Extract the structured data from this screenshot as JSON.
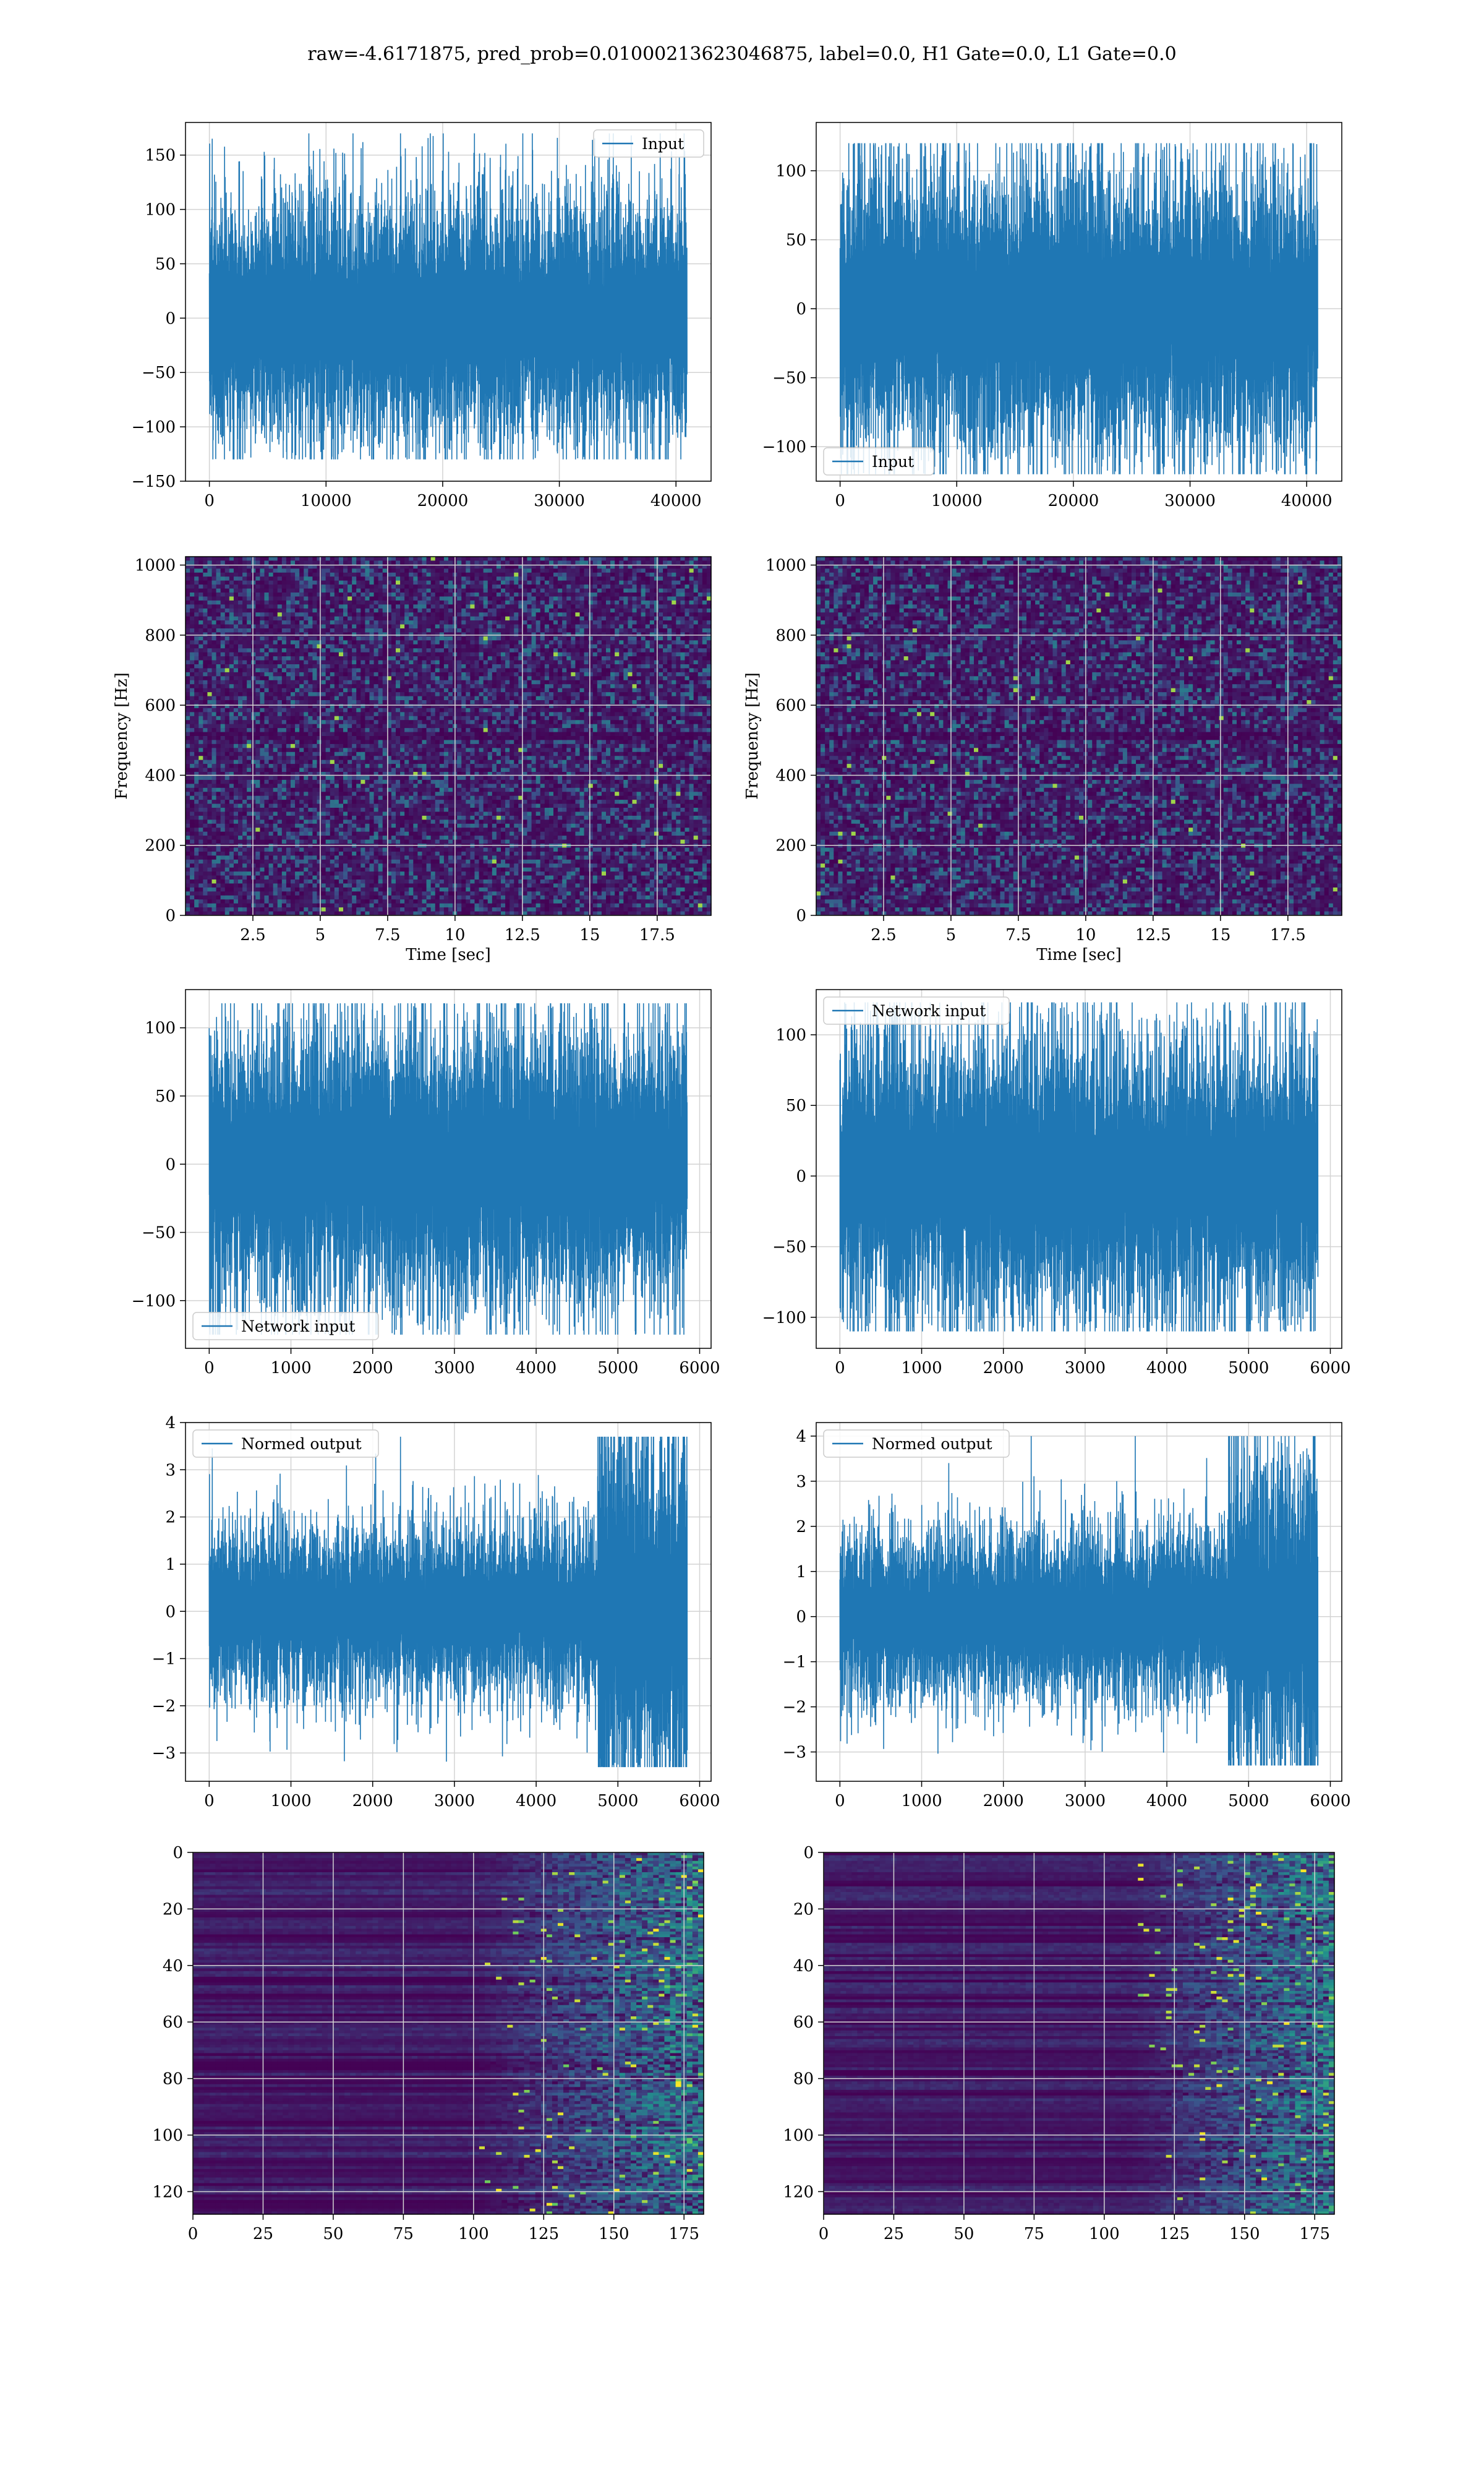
{
  "figure": {
    "title": "raw=-4.6171875, pred_prob=0.01000213623046875, label=0.0, H1 Gate=0.0, L1 Gate=0.0"
  },
  "colors": {
    "line": "#1f77b4",
    "grid": "#d3d3d3",
    "viridis_low": "#440154",
    "viridis_mid": "#21918c",
    "viridis_high": "#fde725"
  },
  "chart_data": [
    {
      "id": "input-left",
      "type": "line",
      "series": [
        {
          "name": "Input",
          "n": 40960,
          "amplitude_sd": 30,
          "peak": 170,
          "trough": -130
        }
      ],
      "xlim": [
        -2048,
        43008
      ],
      "ylim": [
        -150,
        180
      ],
      "xticks": [
        0,
        10000,
        20000,
        30000,
        40000
      ],
      "yticks": [
        -150,
        -100,
        -50,
        0,
        50,
        100,
        150
      ],
      "legend": "upper right",
      "grid": true,
      "xlabel": "",
      "ylabel": ""
    },
    {
      "id": "input-right",
      "type": "line",
      "series": [
        {
          "name": "Input",
          "n": 40960,
          "amplitude_sd": 28,
          "peak": 120,
          "trough": -120
        }
      ],
      "xlim": [
        -2048,
        43008
      ],
      "ylim": [
        -125,
        135
      ],
      "xticks": [
        0,
        10000,
        20000,
        30000,
        40000
      ],
      "yticks": [
        -100,
        -50,
        0,
        50,
        100
      ],
      "legend": "lower left",
      "grid": true,
      "xlabel": "",
      "ylabel": ""
    },
    {
      "id": "spec-left",
      "type": "heatmap",
      "xlabel": "Time [sec]",
      "ylabel": "Frequency [Hz]",
      "xlim": [
        0,
        19.5
      ],
      "ylim": [
        0,
        1024
      ],
      "xticks": [
        2.5,
        5.0,
        7.5,
        10.0,
        12.5,
        15.0,
        17.5
      ],
      "yticks": [
        0,
        200,
        400,
        600,
        800,
        1000
      ],
      "grid": true,
      "colormap": "viridis"
    },
    {
      "id": "spec-right",
      "type": "heatmap",
      "xlabel": "Time [sec]",
      "ylabel": "Frequency [Hz]",
      "xlim": [
        0,
        19.5
      ],
      "ylim": [
        0,
        1024
      ],
      "xticks": [
        2.5,
        5.0,
        7.5,
        10.0,
        12.5,
        15.0,
        17.5
      ],
      "yticks": [
        0,
        200,
        400,
        600,
        800,
        1000
      ],
      "grid": true,
      "colormap": "viridis"
    },
    {
      "id": "network-left",
      "type": "line",
      "series": [
        {
          "name": "Network input",
          "n": 5850,
          "amplitude_sd": 28,
          "peak": 118,
          "trough": -125
        }
      ],
      "xlim": [
        -290,
        6140
      ],
      "ylim": [
        -135,
        128
      ],
      "xticks": [
        0,
        1000,
        2000,
        3000,
        4000,
        5000,
        6000
      ],
      "yticks": [
        -100,
        -50,
        0,
        50,
        100
      ],
      "legend": "lower left",
      "grid": true,
      "xlabel": "",
      "ylabel": ""
    },
    {
      "id": "network-right",
      "type": "line",
      "series": [
        {
          "name": "Network input",
          "n": 5850,
          "amplitude_sd": 27,
          "peak": 123,
          "trough": -110
        }
      ],
      "xlim": [
        -290,
        6140
      ],
      "ylim": [
        -122,
        132
      ],
      "xticks": [
        0,
        1000,
        2000,
        3000,
        4000,
        5000,
        6000
      ],
      "yticks": [
        -100,
        -50,
        0,
        50,
        100
      ],
      "legend": "upper left",
      "grid": true,
      "xlabel": "",
      "ylabel": ""
    },
    {
      "id": "normed-left",
      "type": "line",
      "series": [
        {
          "name": "Normed output",
          "n": 5850,
          "amplitude_sd": 0.5,
          "burst_from_x": 4750,
          "burst_amplitude_sd": 1.1,
          "peak": 3.7,
          "trough": -3.3
        }
      ],
      "xlim": [
        -290,
        6140
      ],
      "ylim": [
        -3.6,
        4.0
      ],
      "xticks": [
        0,
        1000,
        2000,
        3000,
        4000,
        5000,
        6000
      ],
      "yticks": [
        -3,
        -2,
        -1,
        0,
        1,
        2,
        3,
        4
      ],
      "legend": "upper left",
      "grid": true,
      "xlabel": "",
      "ylabel": ""
    },
    {
      "id": "normed-right",
      "type": "line",
      "series": [
        {
          "name": "Normed output",
          "n": 5850,
          "amplitude_sd": 0.5,
          "burst_from_x": 4750,
          "burst_amplitude_sd": 1.0,
          "peak": 4.0,
          "trough": -3.3
        }
      ],
      "xlim": [
        -290,
        6140
      ],
      "ylim": [
        -3.65,
        4.3
      ],
      "xticks": [
        0,
        1000,
        2000,
        3000,
        4000,
        5000,
        6000
      ],
      "yticks": [
        -3,
        -2,
        -1,
        0,
        1,
        2,
        3,
        4
      ],
      "legend": "upper left",
      "grid": true,
      "xlabel": "",
      "ylabel": ""
    },
    {
      "id": "features-left",
      "type": "heatmap",
      "rows": 128,
      "cols": 182,
      "xlim": [
        0,
        182
      ],
      "ylim": [
        128,
        0
      ],
      "xticks": [
        0,
        25,
        50,
        75,
        100,
        125,
        150,
        175
      ],
      "yticks": [
        0,
        20,
        40,
        60,
        80,
        100,
        120
      ],
      "activity_onset_col": 100,
      "grid": true,
      "colormap": "viridis"
    },
    {
      "id": "features-right",
      "type": "heatmap",
      "rows": 128,
      "cols": 182,
      "xlim": [
        0,
        182
      ],
      "ylim": [
        128,
        0
      ],
      "xticks": [
        0,
        25,
        50,
        75,
        100,
        125,
        150,
        175
      ],
      "yticks": [
        0,
        20,
        40,
        60,
        80,
        100,
        120
      ],
      "activity_onset_col": 110,
      "grid": true,
      "colormap": "viridis"
    }
  ]
}
